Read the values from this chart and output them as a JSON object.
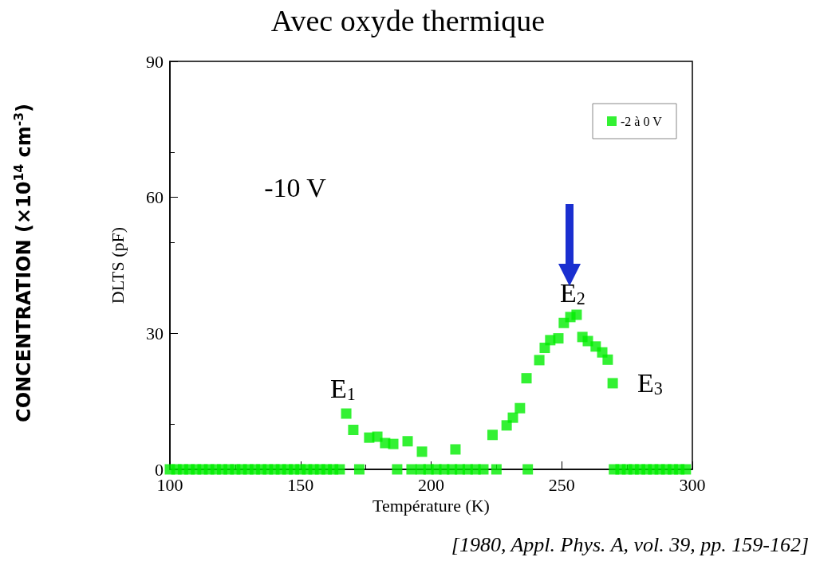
{
  "chart_data": {
    "type": "scatter",
    "title": "Avec oxyde thermique",
    "xlabel": "Température (K)",
    "ylabel": "DLTS (pF)",
    "x": [
      100,
      102.5,
      105,
      107.5,
      110,
      112.5,
      115,
      117.5,
      120,
      122.5,
      125,
      127.5,
      130,
      132.5,
      135,
      137.5,
      140,
      142.5,
      145,
      147.5,
      150,
      152.5,
      155,
      157.5,
      160,
      162.5,
      165,
      167.5,
      170.2,
      172.5,
      176.3,
      179.4,
      182.4,
      185.5,
      187,
      191,
      192.5,
      196,
      196.5,
      199,
      202,
      205,
      208,
      209.3,
      211,
      214,
      217,
      220,
      223.5,
      225,
      228.9,
      231.3,
      234,
      236.5,
      237,
      241.4,
      243.5,
      245.6,
      248.7,
      250.8,
      253.3,
      255.7,
      257.9,
      260,
      263,
      265.5,
      267.6,
      269.5,
      270,
      272.5,
      275,
      277.5,
      280,
      282.5,
      285,
      287.5,
      290,
      292.5,
      295,
      297.5
    ],
    "series": [
      {
        "name": "-2 à 0 V",
        "color": "#00ee00",
        "values": [
          0,
          0,
          0,
          0,
          0,
          0,
          0,
          0,
          0,
          0,
          0,
          0,
          0,
          0,
          0,
          0,
          0,
          0,
          0,
          0,
          0,
          0,
          0,
          0,
          0,
          0,
          0,
          12.3,
          8.7,
          0,
          7.0,
          7.2,
          5.8,
          5.6,
          0,
          6.2,
          0,
          0,
          3.9,
          0,
          0,
          0,
          0,
          4.4,
          0,
          0,
          0,
          0,
          7.6,
          0,
          9.7,
          11.4,
          13.5,
          20.1,
          0,
          24.1,
          26.8,
          28.5,
          28.9,
          32.3,
          33.6,
          34.1,
          29.2,
          28.3,
          27.1,
          25.8,
          24.2,
          19.0,
          0,
          0,
          0,
          0,
          0,
          0,
          0,
          0,
          0,
          0,
          0,
          0
        ]
      }
    ],
    "xlim": [
      100,
      300
    ],
    "xticks": [
      100,
      150,
      200,
      250,
      300
    ],
    "ylim": [
      0,
      90
    ],
    "yticks": [
      0,
      30,
      60,
      90
    ],
    "marker": "square",
    "legend": "top right",
    "grid": false,
    "annotations": [
      "-10 V",
      "E$_{1}$",
      "E$_{2}$",
      "E$_{3}$",
      "CONCENTRATION (×10$^{14}$ cm$^{-3}$)",
      "[1980, Appl. Phys. A, vol. 39, pp. 159-162]"
    ]
  }
}
